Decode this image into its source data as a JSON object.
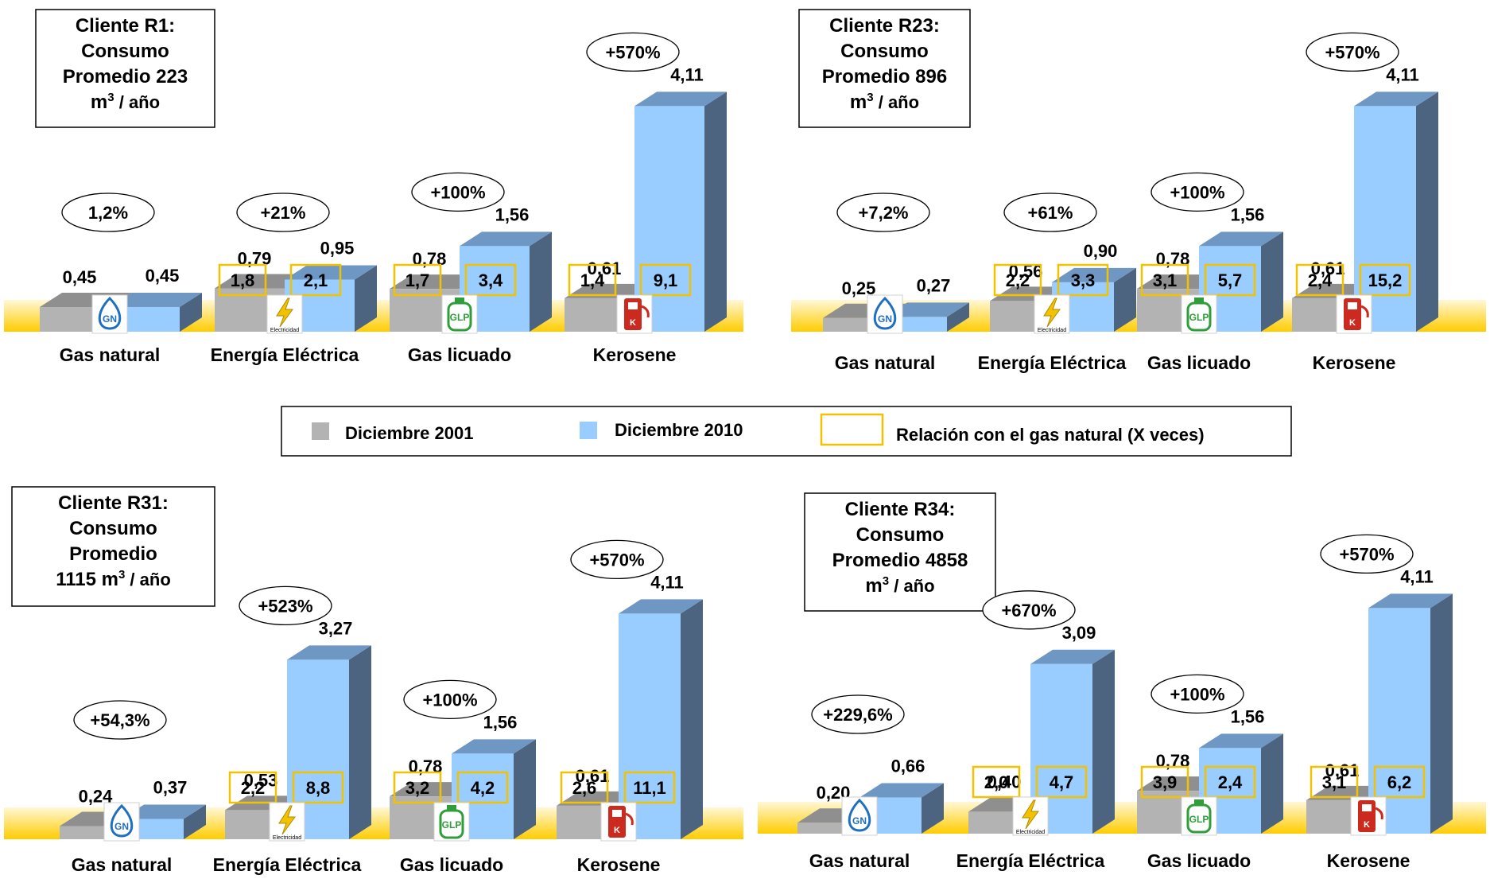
{
  "legend": {
    "items": [
      {
        "label": "Diciembre 2001",
        "color": "#b3b3b3"
      },
      {
        "label": "Diciembre 2010",
        "color": "#99ccff"
      },
      {
        "label": "Relación con el gas natural (X veces)",
        "color": "#f2c200"
      }
    ]
  },
  "colors": {
    "base_band": "#ffcc00",
    "base_band_light": "#fff8d6",
    "side_2010": "#4d6480",
    "top_2010": "#6f97c4",
    "side_2001": "#8c8c8c",
    "top_2001": "#8f8f8f",
    "ratio_box": "#f2c200",
    "icon_gn": "#1f6fc1",
    "icon_glp": "#2f9e3a",
    "icon_elec": "#f2c200",
    "icon_kero": "#cc2a1f"
  },
  "chart_data": [
    {
      "type": "bar",
      "title_lines": [
        "Cliente R1:",
        "Consumo",
        "Promedio 223"
      ],
      "unit_line": {
        "text": "m",
        "sup": "3",
        "suffix": " / año"
      },
      "categories": [
        "Gas natural",
        "Energía Eléctrica",
        "Gas licuado",
        "Kerosene"
      ],
      "icons": [
        "gn-icon",
        "electricity-icon",
        "glp-icon",
        "kerosene-icon"
      ],
      "icon_labels": [
        "GN",
        "Electricidad",
        "GLP",
        "K"
      ],
      "series": [
        {
          "name": "Diciembre 2001",
          "values": [
            0.45,
            0.79,
            0.78,
            0.61
          ],
          "labels": [
            "0,45",
            "0,79",
            "0,78",
            "0,61"
          ]
        },
        {
          "name": "Diciembre 2010",
          "values": [
            0.45,
            0.95,
            1.56,
            4.11
          ],
          "labels": [
            "0,45",
            "0,95",
            "1,56",
            "4,11"
          ]
        }
      ],
      "ratio_2001": [
        "",
        "1,8",
        "1,7",
        "1,4"
      ],
      "ratio_2010": [
        "",
        "2,1",
        "3,4",
        "9,1"
      ],
      "change": [
        "1,2%",
        "+21%",
        "+100%",
        "+570%"
      ]
    },
    {
      "type": "bar",
      "title_lines": [
        "Cliente R23:",
        "Consumo",
        "Promedio 896"
      ],
      "unit_line": {
        "text": "m",
        "sup": "3",
        "suffix": " / año"
      },
      "categories": [
        "Gas natural",
        "Energía Eléctrica",
        "Gas licuado",
        "Kerosene"
      ],
      "icons": [
        "gn-icon",
        "electricity-icon",
        "glp-icon",
        "kerosene-icon"
      ],
      "icon_labels": [
        "GN",
        "Electricidad",
        "GLP",
        "K"
      ],
      "series": [
        {
          "name": "Diciembre 2001",
          "values": [
            0.25,
            0.56,
            0.78,
            0.61
          ],
          "labels": [
            "0,25",
            "0,56",
            "0,78",
            "0,61"
          ]
        },
        {
          "name": "Diciembre 2010",
          "values": [
            0.27,
            0.9,
            1.56,
            4.11
          ],
          "labels": [
            "0,27",
            "0,90",
            "1,56",
            "4,11"
          ]
        }
      ],
      "ratio_2001": [
        "",
        "2,2",
        "3,1",
        "2,4"
      ],
      "ratio_2010": [
        "",
        "3,3",
        "5,7",
        "15,2"
      ],
      "change": [
        "+7,2%",
        "+61%",
        "+100%",
        "+570%"
      ]
    },
    {
      "type": "bar",
      "title_lines": [
        "Cliente R31:",
        "Consumo",
        "Promedio"
      ],
      "unit_line": {
        "text": "1115 m",
        "sup": "3",
        "suffix": " / año"
      },
      "categories": [
        "Gas natural",
        "Energía Eléctrica",
        "Gas licuado",
        "Kerosene"
      ],
      "icons": [
        "gn-icon",
        "electricity-icon",
        "glp-icon",
        "kerosene-icon"
      ],
      "icon_labels": [
        "GN",
        "Electricidad",
        "GLP",
        "K"
      ],
      "series": [
        {
          "name": "Diciembre 2001",
          "values": [
            0.24,
            0.53,
            0.78,
            0.61
          ],
          "labels": [
            "0,24",
            "0,53",
            "0,78",
            "0,61"
          ]
        },
        {
          "name": "Diciembre 2010",
          "values": [
            0.37,
            3.27,
            1.56,
            4.11
          ],
          "labels": [
            "0,37",
            "3,27",
            "1,56",
            "4,11"
          ]
        }
      ],
      "ratio_2001": [
        "",
        "2,2",
        "3,2",
        "2,6"
      ],
      "ratio_2010": [
        "",
        "8,8",
        "4,2",
        "11,1"
      ],
      "change": [
        "+54,3%",
        "+523%",
        "+100%",
        "+570%"
      ]
    },
    {
      "type": "bar",
      "title_lines": [
        "Cliente R34:",
        "Consumo",
        "Promedio 4858"
      ],
      "unit_line": {
        "text": "m",
        "sup": "3",
        "suffix": " / año"
      },
      "categories": [
        "Gas natural",
        "Energía Eléctrica",
        "Gas licuado",
        "Kerosene"
      ],
      "icons": [
        "gn-icon",
        "electricity-icon",
        "glp-icon",
        "kerosene-icon"
      ],
      "icon_labels": [
        "GN",
        "Electricidad",
        "GLP",
        "K"
      ],
      "series": [
        {
          "name": "Diciembre 2001",
          "values": [
            0.2,
            0.4,
            0.78,
            0.61
          ],
          "labels": [
            "0,20",
            "0,40",
            "0,78",
            "0,61"
          ]
        },
        {
          "name": "Diciembre 2010",
          "values": [
            0.66,
            3.09,
            1.56,
            4.11
          ],
          "labels": [
            "0,66",
            "3,09",
            "1,56",
            "4,11"
          ]
        }
      ],
      "ratio_2001": [
        "",
        "2,0",
        "3,9",
        "3,1"
      ],
      "ratio_2010": [
        "",
        "4,7",
        "2,4",
        "6,2"
      ],
      "change": [
        "+229,6%",
        "+670%",
        "+100%",
        "+570%"
      ]
    }
  ]
}
